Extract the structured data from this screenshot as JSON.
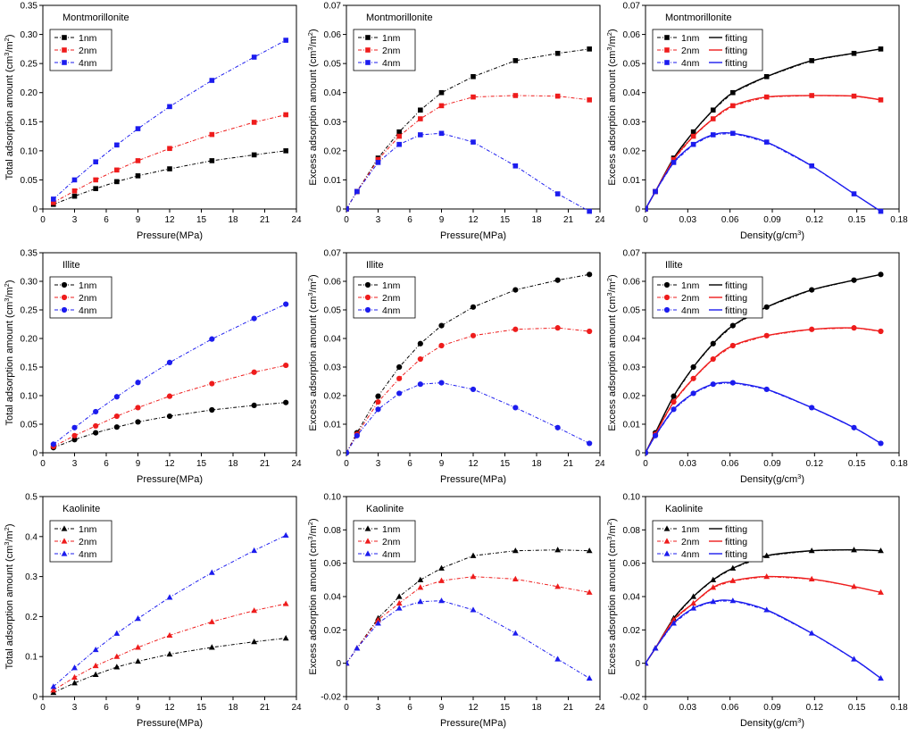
{
  "colors": {
    "1nm": "#000000",
    "2nm": "#ee1c1c",
    "4nm": "#1c1cee"
  },
  "legend": {
    "fit_label": "fitting"
  },
  "chart_data": [
    {
      "type": "line",
      "title": "Montmorillonite",
      "xlabel": "Pressure(MPa)",
      "ylabel_main": "Total adsorption amount (cm",
      "ylabel_unit": "/m",
      "marker": "square",
      "fitted": false,
      "xlim": [
        0,
        24
      ],
      "xticks": [
        0,
        3,
        6,
        9,
        12,
        15,
        18,
        21,
        24
      ],
      "ylim": [
        0,
        0.35
      ],
      "yticks": [
        0,
        0.05,
        0.1,
        0.15,
        0.2,
        0.25,
        0.3,
        0.35
      ],
      "ydec": 2,
      "x": [
        1,
        3,
        5,
        7,
        9,
        12,
        16,
        20,
        23
      ],
      "series": [
        {
          "name": "1nm",
          "values": [
            0.008,
            0.022,
            0.035,
            0.047,
            0.057,
            0.069,
            0.083,
            0.093,
            0.1
          ]
        },
        {
          "name": "2nm",
          "values": [
            0.011,
            0.031,
            0.05,
            0.067,
            0.083,
            0.104,
            0.128,
            0.149,
            0.162
          ]
        },
        {
          "name": "4nm",
          "values": [
            0.017,
            0.05,
            0.081,
            0.11,
            0.138,
            0.176,
            0.221,
            0.261,
            0.29
          ]
        }
      ]
    },
    {
      "type": "line",
      "title": "Montmorillonite",
      "xlabel": "Pressure(MPa)",
      "ylabel_main": "Excess adsorption amount (cm",
      "ylabel_unit": "/m",
      "marker": "square",
      "fitted": false,
      "xlim": [
        0,
        24
      ],
      "xticks": [
        0,
        3,
        6,
        9,
        12,
        15,
        18,
        21,
        24
      ],
      "ylim": [
        0,
        0.07
      ],
      "yticks": [
        0,
        0.01,
        0.02,
        0.03,
        0.04,
        0.05,
        0.06,
        0.07
      ],
      "ydec": 2,
      "x": [
        0,
        1,
        3,
        5,
        7,
        9,
        12,
        16,
        20,
        23
      ],
      "series": [
        {
          "name": "1nm",
          "values": [
            0,
            0.006,
            0.0175,
            0.0265,
            0.034,
            0.04,
            0.0455,
            0.051,
            0.0535,
            0.055
          ]
        },
        {
          "name": "2nm",
          "values": [
            0,
            0.006,
            0.017,
            0.025,
            0.031,
            0.0355,
            0.0385,
            0.039,
            0.0388,
            0.0375
          ]
        },
        {
          "name": "4nm",
          "values": [
            0,
            0.006,
            0.016,
            0.0222,
            0.0255,
            0.026,
            0.023,
            0.0148,
            0.0052,
            -0.0008
          ]
        }
      ]
    },
    {
      "type": "line",
      "title": "Montmorillonite",
      "xlabel": "Density(g/cm",
      "ylabel_main": "Excess adsorption amount (cm",
      "ylabel_unit": "/m",
      "marker": "square",
      "fitted": true,
      "xlim": [
        0,
        0.18
      ],
      "xticks": [
        0,
        0.03,
        0.06,
        0.09,
        0.12,
        0.15,
        0.18
      ],
      "ylim": [
        0,
        0.07
      ],
      "yticks": [
        0,
        0.01,
        0.02,
        0.03,
        0.04,
        0.05,
        0.06,
        0.07
      ],
      "ydec": 2,
      "x": [
        0,
        0.007,
        0.02,
        0.034,
        0.048,
        0.062,
        0.086,
        0.118,
        0.148,
        0.167
      ],
      "series": [
        {
          "name": "1nm",
          "values": [
            0,
            0.006,
            0.0175,
            0.0265,
            0.034,
            0.04,
            0.0455,
            0.051,
            0.0535,
            0.055
          ]
        },
        {
          "name": "2nm",
          "values": [
            0,
            0.006,
            0.017,
            0.025,
            0.031,
            0.0355,
            0.0385,
            0.039,
            0.0388,
            0.0375
          ]
        },
        {
          "name": "4nm",
          "values": [
            0,
            0.006,
            0.016,
            0.0222,
            0.0255,
            0.026,
            0.023,
            0.0148,
            0.0052,
            -0.0008
          ]
        }
      ]
    },
    {
      "type": "line",
      "title": "Illite",
      "xlabel": "Pressure(MPa)",
      "ylabel_main": "Total adsorption amount (cm",
      "ylabel_unit": "/m",
      "marker": "circle",
      "fitted": false,
      "xlim": [
        0,
        24
      ],
      "xticks": [
        0,
        3,
        6,
        9,
        12,
        15,
        18,
        21,
        24
      ],
      "ylim": [
        0,
        0.35
      ],
      "yticks": [
        0,
        0.05,
        0.1,
        0.15,
        0.2,
        0.25,
        0.3,
        0.35
      ],
      "ydec": 2,
      "x": [
        1,
        3,
        5,
        7,
        9,
        12,
        16,
        20,
        23
      ],
      "series": [
        {
          "name": "1nm",
          "values": [
            0.009,
            0.023,
            0.035,
            0.045,
            0.054,
            0.064,
            0.075,
            0.083,
            0.088
          ]
        },
        {
          "name": "2nm",
          "values": [
            0.011,
            0.03,
            0.047,
            0.064,
            0.079,
            0.099,
            0.121,
            0.141,
            0.153
          ]
        },
        {
          "name": "4nm",
          "values": [
            0.015,
            0.044,
            0.072,
            0.098,
            0.123,
            0.158,
            0.199,
            0.235,
            0.26
          ]
        }
      ]
    },
    {
      "type": "line",
      "title": "Illite",
      "xlabel": "Pressure(MPa)",
      "ylabel_main": "Excess adsorption amount (cm",
      "ylabel_unit": "/m",
      "marker": "circle",
      "fitted": false,
      "xlim": [
        0,
        24
      ],
      "xticks": [
        0,
        3,
        6,
        9,
        12,
        15,
        18,
        21,
        24
      ],
      "ylim": [
        0,
        0.07
      ],
      "yticks": [
        0,
        0.01,
        0.02,
        0.03,
        0.04,
        0.05,
        0.06,
        0.07
      ],
      "ydec": 2,
      "x": [
        0,
        1,
        3,
        5,
        7,
        9,
        12,
        16,
        20,
        23
      ],
      "series": [
        {
          "name": "1nm",
          "values": [
            0,
            0.007,
            0.0198,
            0.03,
            0.0382,
            0.0445,
            0.051,
            0.057,
            0.0604,
            0.0624
          ]
        },
        {
          "name": "2nm",
          "values": [
            0,
            0.0065,
            0.0178,
            0.026,
            0.0328,
            0.0375,
            0.041,
            0.0432,
            0.0437,
            0.0425
          ]
        },
        {
          "name": "4nm",
          "values": [
            0,
            0.006,
            0.0152,
            0.0208,
            0.024,
            0.0245,
            0.0222,
            0.0158,
            0.0088,
            0.0033
          ]
        }
      ]
    },
    {
      "type": "line",
      "title": "Illite",
      "xlabel": "Density(g/cm",
      "ylabel_main": "Excess adsorption amount (cm",
      "ylabel_unit": "/m",
      "marker": "circle",
      "fitted": true,
      "xlim": [
        0,
        0.18
      ],
      "xticks": [
        0,
        0.03,
        0.06,
        0.09,
        0.12,
        0.15,
        0.18
      ],
      "ylim": [
        0,
        0.07
      ],
      "yticks": [
        0,
        0.01,
        0.02,
        0.03,
        0.04,
        0.05,
        0.06,
        0.07
      ],
      "ydec": 2,
      "x": [
        0,
        0.007,
        0.02,
        0.034,
        0.048,
        0.062,
        0.086,
        0.118,
        0.148,
        0.167
      ],
      "series": [
        {
          "name": "1nm",
          "values": [
            0,
            0.007,
            0.0198,
            0.03,
            0.0382,
            0.0445,
            0.051,
            0.057,
            0.0604,
            0.0624
          ]
        },
        {
          "name": "2nm",
          "values": [
            0,
            0.0065,
            0.0178,
            0.026,
            0.0328,
            0.0375,
            0.041,
            0.0432,
            0.0437,
            0.0425
          ]
        },
        {
          "name": "4nm",
          "values": [
            0,
            0.006,
            0.0152,
            0.0208,
            0.024,
            0.0245,
            0.0222,
            0.0158,
            0.0088,
            0.0033
          ]
        }
      ]
    },
    {
      "type": "line",
      "title": "Kaolinite",
      "xlabel": "Pressure(MPa)",
      "ylabel_main": "Total adsorption amount (cm",
      "ylabel_unit": "/m",
      "marker": "triangle",
      "fitted": false,
      "xlim": [
        0,
        24
      ],
      "xticks": [
        0,
        3,
        6,
        9,
        12,
        15,
        18,
        21,
        24
      ],
      "ylim": [
        0,
        0.5
      ],
      "yticks": [
        0,
        0.1,
        0.2,
        0.3,
        0.4,
        0.5
      ],
      "ydec": 1,
      "x": [
        1,
        3,
        5,
        7,
        9,
        12,
        16,
        20,
        23
      ],
      "series": [
        {
          "name": "1nm",
          "values": [
            0.01,
            0.034,
            0.055,
            0.074,
            0.088,
            0.106,
            0.123,
            0.137,
            0.146
          ]
        },
        {
          "name": "2nm",
          "values": [
            0.016,
            0.048,
            0.077,
            0.1,
            0.123,
            0.153,
            0.187,
            0.215,
            0.232
          ]
        },
        {
          "name": "4nm",
          "values": [
            0.025,
            0.072,
            0.117,
            0.158,
            0.195,
            0.248,
            0.31,
            0.365,
            0.403
          ]
        }
      ]
    },
    {
      "type": "line",
      "title": "Kaolinite",
      "xlabel": "Pressure(MPa)",
      "ylabel_main": "Excess adsorption amount (cm",
      "ylabel_unit": "/m",
      "marker": "triangle",
      "fitted": false,
      "xlim": [
        0,
        24
      ],
      "xticks": [
        0,
        3,
        6,
        9,
        12,
        15,
        18,
        21,
        24
      ],
      "ylim": [
        -0.02,
        0.1
      ],
      "yticks": [
        -0.02,
        0,
        0.02,
        0.04,
        0.06,
        0.08,
        0.1
      ],
      "ydec": 2,
      "x": [
        0,
        1,
        3,
        5,
        7,
        9,
        12,
        16,
        20,
        23
      ],
      "series": [
        {
          "name": "1nm",
          "values": [
            0,
            0.009,
            0.027,
            0.04,
            0.05,
            0.057,
            0.0645,
            0.0675,
            0.068,
            0.0675
          ]
        },
        {
          "name": "2nm",
          "values": [
            0,
            0.009,
            0.026,
            0.036,
            0.0455,
            0.0495,
            0.052,
            0.0505,
            0.046,
            0.0425
          ]
        },
        {
          "name": "4nm",
          "values": [
            0,
            0.009,
            0.024,
            0.033,
            0.037,
            0.0375,
            0.032,
            0.018,
            0.0025,
            -0.009
          ]
        }
      ]
    },
    {
      "type": "line",
      "title": "Kaolinite",
      "xlabel": "Density(g/cm",
      "ylabel_main": "Excess adsorption amount (cm",
      "ylabel_unit": "/m",
      "marker": "triangle",
      "fitted": true,
      "xlim": [
        0,
        0.18
      ],
      "xticks": [
        0,
        0.03,
        0.06,
        0.09,
        0.12,
        0.15,
        0.18
      ],
      "ylim": [
        -0.02,
        0.1
      ],
      "yticks": [
        -0.02,
        0,
        0.02,
        0.04,
        0.06,
        0.08,
        0.1
      ],
      "ydec": 2,
      "x": [
        0,
        0.007,
        0.02,
        0.034,
        0.048,
        0.062,
        0.086,
        0.118,
        0.148,
        0.167
      ],
      "series": [
        {
          "name": "1nm",
          "values": [
            0,
            0.009,
            0.027,
            0.04,
            0.05,
            0.057,
            0.0645,
            0.0675,
            0.068,
            0.0675
          ]
        },
        {
          "name": "2nm",
          "values": [
            0,
            0.009,
            0.026,
            0.036,
            0.0455,
            0.0495,
            0.052,
            0.0505,
            0.046,
            0.0425
          ]
        },
        {
          "name": "4nm",
          "values": [
            0,
            0.009,
            0.024,
            0.033,
            0.037,
            0.0375,
            0.032,
            0.018,
            0.0025,
            -0.009
          ]
        }
      ]
    }
  ]
}
